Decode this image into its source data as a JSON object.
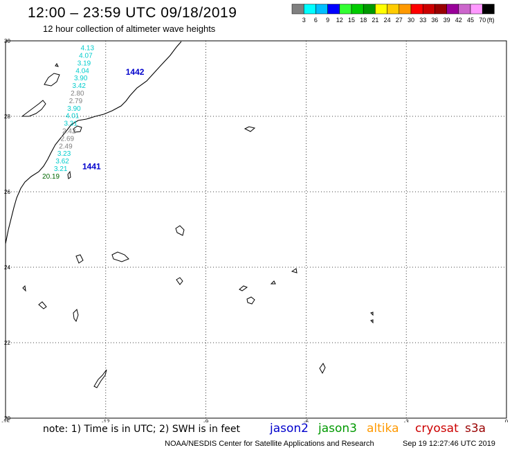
{
  "title": "12:00 – 23:59 UTC 09/18/2019",
  "subtitle": "12 hour collection of altimeter wave heights",
  "colorbar": {
    "unit": "(ft)",
    "colors": [
      "#808080",
      "#00ffff",
      "#00bfff",
      "#0000ff",
      "#33ff33",
      "#00cc00",
      "#009900",
      "#ffff00",
      "#ffcc00",
      "#ff9900",
      "#ff0000",
      "#cc0000",
      "#990000",
      "#990099",
      "#cc66cc",
      "#ff99ff",
      "#000000"
    ],
    "labels": [
      "3",
      "6",
      "9",
      "12",
      "15",
      "18",
      "21",
      "24",
      "27",
      "30",
      "33",
      "36",
      "39",
      "42",
      "45",
      "70"
    ]
  },
  "map": {
    "lon_range": [
      -15,
      0
    ],
    "lat_range": [
      20,
      30
    ],
    "x_ticks": [
      "-15",
      "-12",
      "-9",
      "-6",
      "-3",
      "0"
    ],
    "y_ticks": [
      "30",
      "28",
      "26",
      "24",
      "22",
      "20"
    ],
    "pass_labels": [
      {
        "text": "1442",
        "lon": -11.4,
        "lat": 29.1,
        "color": "#0000cc"
      },
      {
        "text": "1441",
        "lon": -12.7,
        "lat": 26.6,
        "color": "#0000cc"
      }
    ],
    "observations": [
      {
        "v": "4.13",
        "lon": -12.75,
        "lat": 29.75,
        "color": "#00cccc"
      },
      {
        "v": "4.07",
        "lon": -12.8,
        "lat": 29.55,
        "color": "#00cccc"
      },
      {
        "v": "3.19",
        "lon": -12.85,
        "lat": 29.35,
        "color": "#00cccc"
      },
      {
        "v": "4.04",
        "lon": -12.9,
        "lat": 29.15,
        "color": "#00cccc"
      },
      {
        "v": "3.90",
        "lon": -12.95,
        "lat": 28.95,
        "color": "#00cccc"
      },
      {
        "v": "3.42",
        "lon": -13.0,
        "lat": 28.75,
        "color": "#00cccc"
      },
      {
        "v": "2.80",
        "lon": -13.05,
        "lat": 28.55,
        "color": "#808080"
      },
      {
        "v": "2.79",
        "lon": -13.1,
        "lat": 28.35,
        "color": "#808080"
      },
      {
        "v": "3.90",
        "lon": -13.15,
        "lat": 28.15,
        "color": "#00cccc"
      },
      {
        "v": "4.01",
        "lon": -13.2,
        "lat": 27.95,
        "color": "#00cccc"
      },
      {
        "v": "3.31",
        "lon": -13.25,
        "lat": 27.75,
        "color": "#00cccc"
      },
      {
        "v": "2.42",
        "lon": -13.3,
        "lat": 27.55,
        "color": "#808080"
      },
      {
        "v": "2.69",
        "lon": -13.35,
        "lat": 27.35,
        "color": "#808080"
      },
      {
        "v": "2.49",
        "lon": -13.4,
        "lat": 27.15,
        "color": "#808080"
      },
      {
        "v": "3.23",
        "lon": -13.45,
        "lat": 26.95,
        "color": "#00cccc"
      },
      {
        "v": "3.62",
        "lon": -13.5,
        "lat": 26.75,
        "color": "#00cccc"
      },
      {
        "v": "3.21",
        "lon": -13.55,
        "lat": 26.55,
        "color": "#00cccc"
      },
      {
        "v": "20.19",
        "lon": -13.9,
        "lat": 26.35,
        "color": "#006600"
      }
    ]
  },
  "note": "note:  1) Time is in UTC;  2) SWH is in feet",
  "satellites": [
    {
      "name": "jason2",
      "color": "#0000cc"
    },
    {
      "name": "jason3",
      "color": "#009900"
    },
    {
      "name": "altika",
      "color": "#ff9900"
    },
    {
      "name": "cryosat",
      "color": "#cc0000"
    },
    {
      "name": "s3a",
      "color": "#990000"
    }
  ],
  "footer_left": "NOAA/NESDIS Center for Satellite Applications and Research",
  "footer_right": "Sep 19 12:27:46 UTC 2019"
}
